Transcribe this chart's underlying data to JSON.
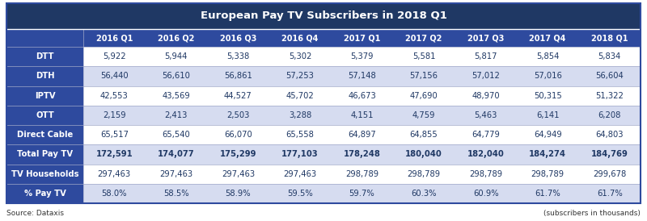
{
  "title": "European Pay TV Subscribers in 2018 Q1",
  "col_headers": [
    "2016 Q1",
    "2016 Q2",
    "2016 Q3",
    "2016 Q4",
    "2017 Q1",
    "2017 Q2",
    "2017 Q3",
    "2017 Q4",
    "2018 Q1"
  ],
  "rows": [
    {
      "label": "DTT",
      "values": [
        "5,922",
        "5,944",
        "5,338",
        "5,302",
        "5,379",
        "5,581",
        "5,817",
        "5,854",
        "5,834"
      ],
      "bold_vals": false,
      "highlight": false
    },
    {
      "label": "DTH",
      "values": [
        "56,440",
        "56,610",
        "56,861",
        "57,253",
        "57,148",
        "57,156",
        "57,012",
        "57,016",
        "56,604"
      ],
      "bold_vals": false,
      "highlight": true
    },
    {
      "label": "IPTV",
      "values": [
        "42,553",
        "43,569",
        "44,527",
        "45,702",
        "46,673",
        "47,690",
        "48,970",
        "50,315",
        "51,322"
      ],
      "bold_vals": false,
      "highlight": false
    },
    {
      "label": "OTT",
      "values": [
        "2,159",
        "2,413",
        "2,503",
        "3,288",
        "4,151",
        "4,759",
        "5,463",
        "6,141",
        "6,208"
      ],
      "bold_vals": false,
      "highlight": true
    },
    {
      "label": "Direct Cable",
      "values": [
        "65,517",
        "65,540",
        "66,070",
        "65,558",
        "64,897",
        "64,855",
        "64,779",
        "64,949",
        "64,803"
      ],
      "bold_vals": false,
      "highlight": false
    },
    {
      "label": "Total Pay TV",
      "values": [
        "172,591",
        "174,077",
        "175,299",
        "177,103",
        "178,248",
        "180,040",
        "182,040",
        "184,274",
        "184,769"
      ],
      "bold_vals": true,
      "highlight": true
    },
    {
      "label": "TV Households",
      "values": [
        "297,463",
        "297,463",
        "297,463",
        "297,463",
        "298,789",
        "298,789",
        "298,789",
        "298,789",
        "299,678"
      ],
      "bold_vals": false,
      "highlight": false
    },
    {
      "label": "% Pay TV",
      "values": [
        "58.0%",
        "58.5%",
        "58.9%",
        "59.5%",
        "59.7%",
        "60.3%",
        "60.9%",
        "61.7%",
        "61.7%"
      ],
      "bold_vals": false,
      "highlight": true
    }
  ],
  "title_bg": "#1F3864",
  "title_fg": "#FFFFFF",
  "header_bg": "#2E4A9E",
  "header_fg": "#FFFFFF",
  "label_bg": "#2E4A9E",
  "label_fg": "#FFFFFF",
  "highlight_bg": "#D6DCF0",
  "normal_bg": "#FFFFFF",
  "data_fg": "#1F3864",
  "grid_color": "#A0A8C8",
  "border_color": "#2E4A9E",
  "source_text": "Source: Dataxis",
  "note_text": "(subscribers in thousands)"
}
